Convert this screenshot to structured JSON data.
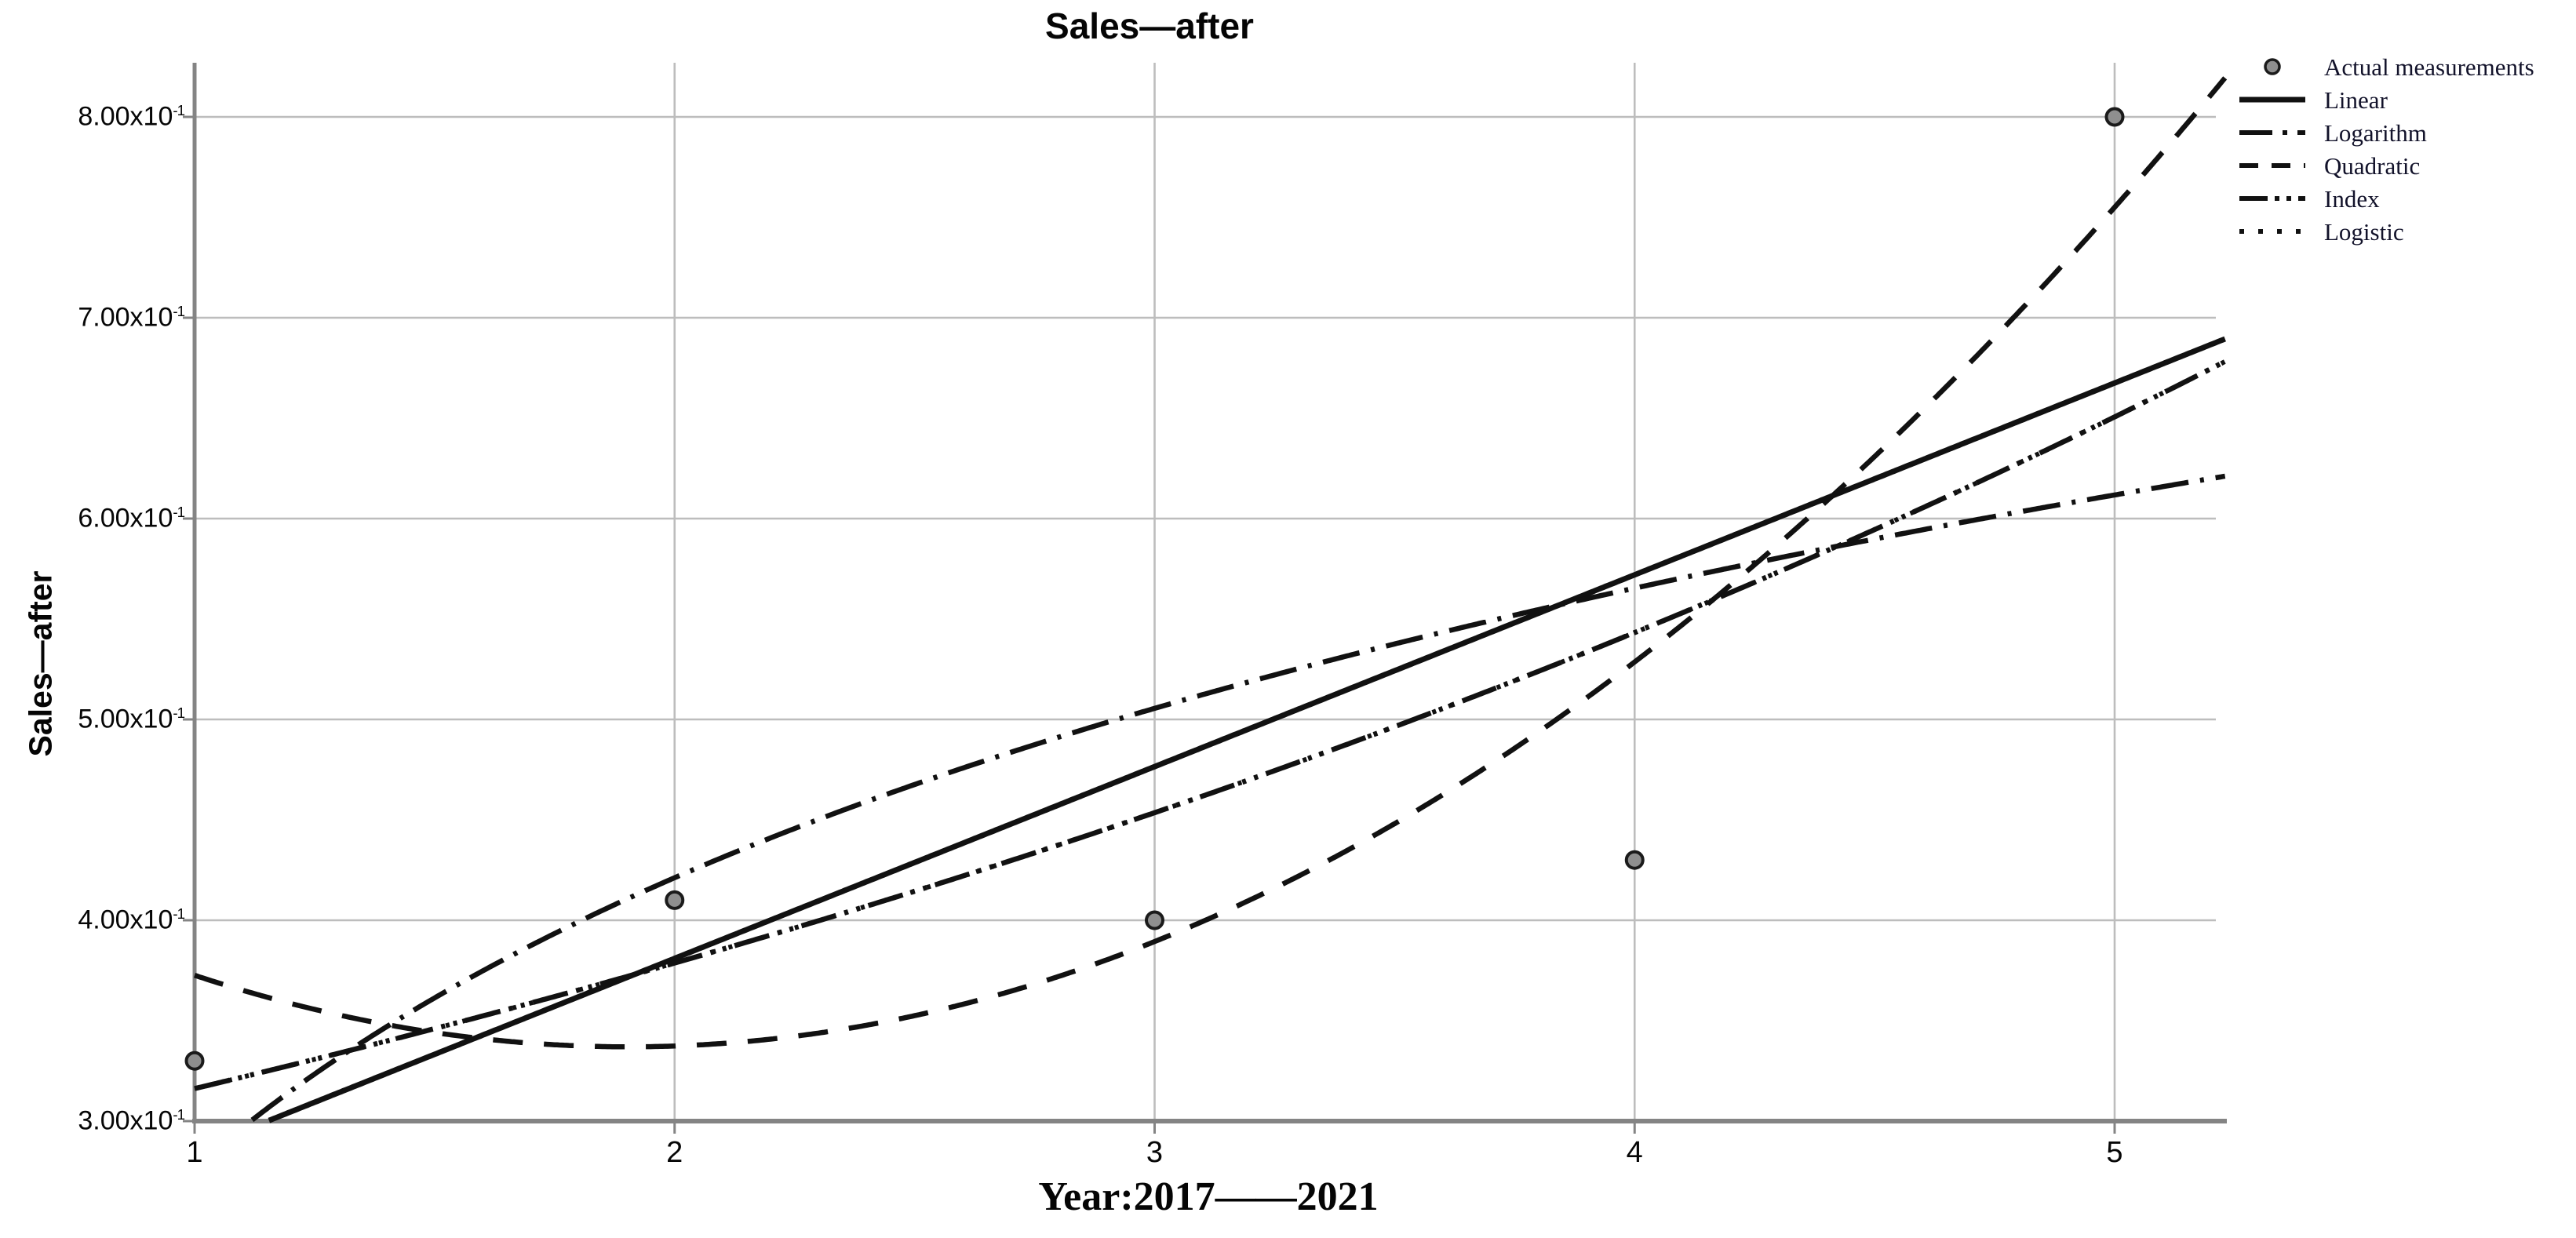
{
  "chart_data": {
    "type": "scatter",
    "title": "Sales—after",
    "xlabel": "Year:2017——2021",
    "ylabel": "Sales—after",
    "x_ticks": [
      "1",
      "2",
      "3",
      "4",
      "5"
    ],
    "y_ticks": [
      {
        "mantissa": "3.00x10",
        "exponent": "-1",
        "value": 0.3
      },
      {
        "mantissa": "4.00x10",
        "exponent": "-1",
        "value": 0.4
      },
      {
        "mantissa": "5.00x10",
        "exponent": "-1",
        "value": 0.5
      },
      {
        "mantissa": "6.00x10",
        "exponent": "-1",
        "value": 0.6
      },
      {
        "mantissa": "7.00x10",
        "exponent": "-1",
        "value": 0.7
      },
      {
        "mantissa": "8.00x10",
        "exponent": "-1",
        "value": 0.8
      }
    ],
    "xlim": [
      1,
      5.23
    ],
    "ylim": [
      0.3,
      0.826
    ],
    "grid": true,
    "legend_position": "top-right-outside",
    "points": {
      "name": "Actual measurements",
      "data": [
        [
          1,
          0.33
        ],
        [
          2,
          0.41
        ],
        [
          3,
          0.4
        ],
        [
          4,
          0.43
        ],
        [
          5,
          0.8
        ]
      ]
    },
    "series": [
      {
        "name": "Linear",
        "style": "solid",
        "model": "linear",
        "params": {
          "a": 0.19,
          "b": 0.0955
        }
      },
      {
        "name": "Logarithm",
        "style": "dash-dot",
        "model": "logarithmic",
        "params": {
          "a": 0.277,
          "b": 0.208
        }
      },
      {
        "name": "Quadratic",
        "style": "dashed",
        "model": "quadratic",
        "params": {
          "a": 0.495,
          "b": -0.166,
          "c": 0.0436
        }
      },
      {
        "name": "Index",
        "style": "dash-dot-dot",
        "model": "exponential",
        "params": {
          "a": 0.264,
          "b": 0.1804
        }
      },
      {
        "name": "Logistic",
        "style": "dotted",
        "model": "exponential",
        "params": {
          "a": 0.264,
          "b": 0.1804
        }
      }
    ],
    "colors": {
      "line": "#111111",
      "grid": "#bdbdbd",
      "axis": "#848484",
      "point_fill": "#8f8f8f",
      "point_ring": "#1b1b1b",
      "text": "#060606"
    }
  }
}
